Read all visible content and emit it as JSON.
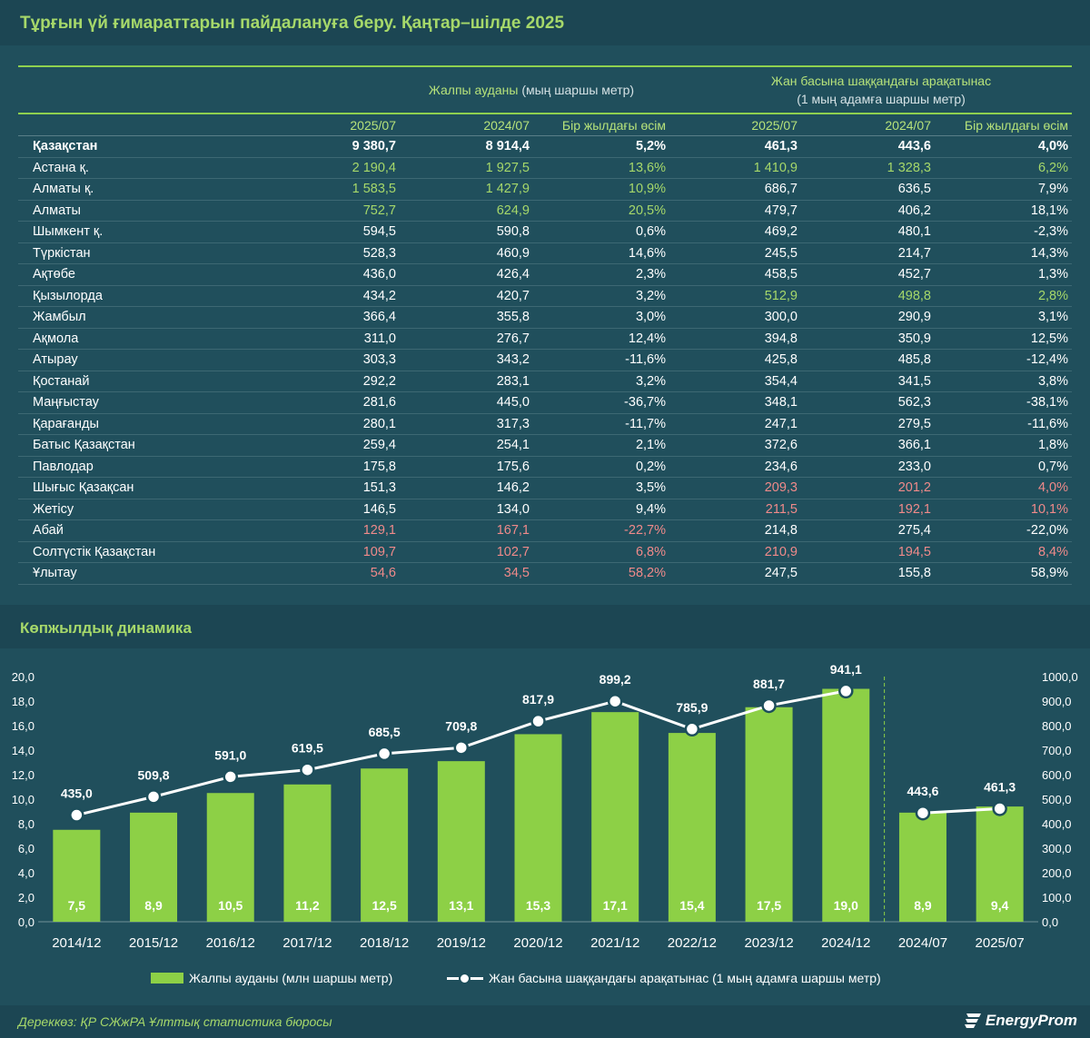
{
  "title": "Тұрғын үй ғимараттарын пайдалануға беру. Қаңтар–шілде 2025",
  "table": {
    "group1": "Жалпы ауданы",
    "group1_unit": "(мың шаршы метр)",
    "group2_line1": "Жан басына шаққандағы арақатынас",
    "group2_line2": "(1 мың адамға шаршы метр)",
    "columns": [
      "2025/07",
      "2024/07",
      "Бір жылдағы өсім",
      "2025/07",
      "2024/07",
      "Бір жылдағы өсім"
    ],
    "rows": [
      {
        "name": "Қазақстан",
        "bold": true,
        "cells": [
          "9 380,7",
          "8 914,4",
          "5,2%",
          "461,3",
          "443,6",
          "4,0%"
        ],
        "tone": [
          "w",
          "w",
          "w",
          "w",
          "w",
          "w"
        ]
      },
      {
        "name": "Астана қ.",
        "cells": [
          "2 190,4",
          "1 927,5",
          "13,6%",
          "1 410,9",
          "1 328,3",
          "6,2%"
        ],
        "tone": [
          "g",
          "g",
          "g",
          "g",
          "g",
          "g"
        ]
      },
      {
        "name": "Алматы қ.",
        "cells": [
          "1 583,5",
          "1 427,9",
          "10,9%",
          "686,7",
          "636,5",
          "7,9%"
        ],
        "tone": [
          "g",
          "g",
          "g",
          "w",
          "w",
          "w"
        ]
      },
      {
        "name": "Алматы",
        "cells": [
          "752,7",
          "624,9",
          "20,5%",
          "479,7",
          "406,2",
          "18,1%"
        ],
        "tone": [
          "g",
          "g",
          "g",
          "w",
          "w",
          "w"
        ]
      },
      {
        "name": "Шымкент қ.",
        "cells": [
          "594,5",
          "590,8",
          "0,6%",
          "469,2",
          "480,1",
          "-2,3%"
        ],
        "tone": [
          "w",
          "w",
          "w",
          "w",
          "w",
          "w"
        ]
      },
      {
        "name": "Түркістан",
        "cells": [
          "528,3",
          "460,9",
          "14,6%",
          "245,5",
          "214,7",
          "14,3%"
        ],
        "tone": [
          "w",
          "w",
          "w",
          "w",
          "w",
          "w"
        ]
      },
      {
        "name": "Ақтөбе",
        "cells": [
          "436,0",
          "426,4",
          "2,3%",
          "458,5",
          "452,7",
          "1,3%"
        ],
        "tone": [
          "w",
          "w",
          "w",
          "w",
          "w",
          "w"
        ]
      },
      {
        "name": "Қызылорда",
        "cells": [
          "434,2",
          "420,7",
          "3,2%",
          "512,9",
          "498,8",
          "2,8%"
        ],
        "tone": [
          "w",
          "w",
          "w",
          "g",
          "g",
          "g"
        ]
      },
      {
        "name": "Жамбыл",
        "cells": [
          "366,4",
          "355,8",
          "3,0%",
          "300,0",
          "290,9",
          "3,1%"
        ],
        "tone": [
          "w",
          "w",
          "w",
          "w",
          "w",
          "w"
        ]
      },
      {
        "name": "Ақмола",
        "cells": [
          "311,0",
          "276,7",
          "12,4%",
          "394,8",
          "350,9",
          "12,5%"
        ],
        "tone": [
          "w",
          "w",
          "w",
          "w",
          "w",
          "w"
        ]
      },
      {
        "name": "Атырау",
        "cells": [
          "303,3",
          "343,2",
          "-11,6%",
          "425,8",
          "485,8",
          "-12,4%"
        ],
        "tone": [
          "w",
          "w",
          "w",
          "w",
          "w",
          "w"
        ]
      },
      {
        "name": "Қостанай",
        "cells": [
          "292,2",
          "283,1",
          "3,2%",
          "354,4",
          "341,5",
          "3,8%"
        ],
        "tone": [
          "w",
          "w",
          "w",
          "w",
          "w",
          "w"
        ]
      },
      {
        "name": "Маңғыстау",
        "cells": [
          "281,6",
          "445,0",
          "-36,7%",
          "348,1",
          "562,3",
          "-38,1%"
        ],
        "tone": [
          "w",
          "w",
          "w",
          "w",
          "w",
          "w"
        ]
      },
      {
        "name": "Қарағанды",
        "cells": [
          "280,1",
          "317,3",
          "-11,7%",
          "247,1",
          "279,5",
          "-11,6%"
        ],
        "tone": [
          "w",
          "w",
          "w",
          "w",
          "w",
          "w"
        ]
      },
      {
        "name": "Батыс Қазақстан",
        "cells": [
          "259,4",
          "254,1",
          "2,1%",
          "372,6",
          "366,1",
          "1,8%"
        ],
        "tone": [
          "w",
          "w",
          "w",
          "w",
          "w",
          "w"
        ]
      },
      {
        "name": "Павлодар",
        "cells": [
          "175,8",
          "175,6",
          "0,2%",
          "234,6",
          "233,0",
          "0,7%"
        ],
        "tone": [
          "w",
          "w",
          "w",
          "w",
          "w",
          "w"
        ]
      },
      {
        "name": "Шығыс Қазақсан",
        "cells": [
          "151,3",
          "146,2",
          "3,5%",
          "209,3",
          "201,2",
          "4,0%"
        ],
        "tone": [
          "w",
          "w",
          "w",
          "r",
          "r",
          "r"
        ]
      },
      {
        "name": "Жетісу",
        "cells": [
          "146,5",
          "134,0",
          "9,4%",
          "211,5",
          "192,1",
          "10,1%"
        ],
        "tone": [
          "w",
          "w",
          "w",
          "r",
          "r",
          "r"
        ]
      },
      {
        "name": "Абай",
        "cells": [
          "129,1",
          "167,1",
          "-22,7%",
          "214,8",
          "275,4",
          "-22,0%"
        ],
        "tone": [
          "r",
          "r",
          "r",
          "w",
          "w",
          "w"
        ]
      },
      {
        "name": "Солтүстік Қазақстан",
        "cells": [
          "109,7",
          "102,7",
          "6,8%",
          "210,9",
          "194,5",
          "8,4%"
        ],
        "tone": [
          "r",
          "r",
          "r",
          "r",
          "r",
          "r"
        ]
      },
      {
        "name": "Ұлытау",
        "cells": [
          "54,6",
          "34,5",
          "58,2%",
          "247,5",
          "155,8",
          "58,9%"
        ],
        "tone": [
          "r",
          "r",
          "r",
          "w",
          "w",
          "w"
        ]
      }
    ]
  },
  "section2_title": "Көпжылдық динамика",
  "chart_data": {
    "type": "bar",
    "categories": [
      "2014/12",
      "2015/12",
      "2016/12",
      "2017/12",
      "2018/12",
      "2019/12",
      "2020/12",
      "2021/12",
      "2022/12",
      "2023/12",
      "2024/12",
      "2024/07",
      "2025/07"
    ],
    "series": [
      {
        "name": "Жалпы ауданы (млн шаршы метр)",
        "type": "bar",
        "axis": "left",
        "values": [
          7.5,
          8.9,
          10.5,
          11.2,
          12.5,
          13.1,
          15.3,
          17.1,
          15.4,
          17.5,
          19.0,
          8.9,
          9.4
        ],
        "labels": [
          "7,5",
          "8,9",
          "10,5",
          "11,2",
          "12,5",
          "13,1",
          "15,3",
          "17,1",
          "15,4",
          "17,5",
          "19,0",
          "8,9",
          "9,4"
        ]
      },
      {
        "name": "Жан басына шаққандағы арақатынас (1 мың адамға шаршы метр)",
        "type": "line",
        "axis": "right",
        "values": [
          435.0,
          509.8,
          591.0,
          619.5,
          685.5,
          709.8,
          817.9,
          899.2,
          785.9,
          881.7,
          941.1,
          443.6,
          461.3
        ],
        "labels": [
          "435,0",
          "509,8",
          "591,0",
          "619,5",
          "685,5",
          "709,8",
          "817,9",
          "899,2",
          "785,9",
          "881,7",
          "941,1",
          "443,6",
          "461,3"
        ],
        "segments": [
          [
            0,
            10
          ],
          [
            11,
            12
          ]
        ]
      }
    ],
    "y_left": {
      "min": 0,
      "max": 20,
      "ticks": [
        "0,0",
        "2,0",
        "4,0",
        "6,0",
        "8,0",
        "10,0",
        "12,0",
        "14,0",
        "16,0",
        "18,0",
        "20,0"
      ]
    },
    "y_right": {
      "min": 0,
      "max": 1000,
      "ticks": [
        "0,0",
        "100,0",
        "200,0",
        "300,0",
        "400,0",
        "500,0",
        "600,0",
        "700,0",
        "800,0",
        "900,0",
        "1000,0"
      ]
    },
    "grid": false,
    "divider_after_index": 10,
    "legend_position": "bottom",
    "colors": {
      "bar": "#8dd046",
      "line": "#ffffff",
      "divider": "#8dd046"
    }
  },
  "legend": {
    "bar_label": "Жалпы ауданы (млн шаршы метр)",
    "line_label": "Жан басына шаққандағы арақатынас (1 мың адамға шаршы метр)"
  },
  "footer": {
    "source": "Дереккөз: ҚР СЖжРА Ұлттық статистика бюросы",
    "logo_text": "EnergyProm"
  }
}
